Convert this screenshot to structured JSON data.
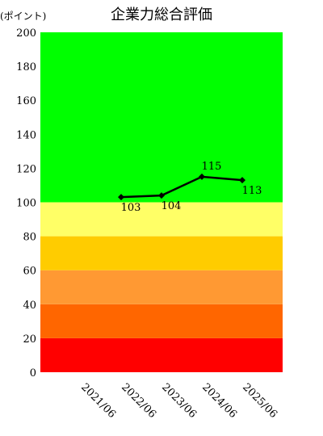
{
  "chart_data": {
    "type": "line",
    "title": "企業力総合評価",
    "ylabel": "(ポイント)",
    "xlabel": "",
    "ylim": [
      0,
      200
    ],
    "yticks": [
      0,
      20,
      40,
      60,
      80,
      100,
      120,
      140,
      160,
      180,
      200
    ],
    "categories": [
      "2021/06",
      "2022/06",
      "2023/06",
      "2024/06",
      "2025/06"
    ],
    "series": [
      {
        "values": [
          null,
          103,
          104,
          115,
          113
        ],
        "color": "#000000"
      }
    ],
    "bands": [
      {
        "from": 0,
        "to": 20,
        "color": "#ff0000"
      },
      {
        "from": 20,
        "to": 40,
        "color": "#ff6600"
      },
      {
        "from": 40,
        "to": 60,
        "color": "#ff9933"
      },
      {
        "from": 60,
        "to": 80,
        "color": "#ffcc00"
      },
      {
        "from": 80,
        "to": 100,
        "color": "#ffff66"
      },
      {
        "from": 100,
        "to": 200,
        "color": "#00ff00"
      }
    ],
    "grid": false,
    "legend": "none"
  }
}
